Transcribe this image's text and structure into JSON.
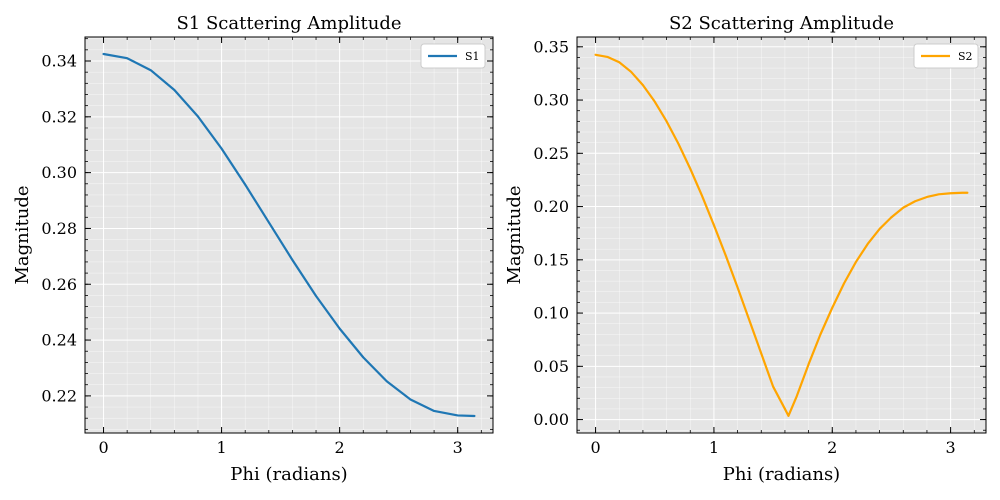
{
  "chart_data": [
    {
      "type": "line",
      "title": "S1 Scattering Amplitude",
      "xlabel": "Phi (radians)",
      "ylabel": "Magnitude",
      "xlim": [
        -0.157,
        3.299
      ],
      "ylim": [
        0.2067,
        0.3486
      ],
      "xticks": [
        0,
        1,
        2,
        3
      ],
      "xtick_labels": [
        "0",
        "1",
        "2",
        "3"
      ],
      "yticks": [
        0.22,
        0.24,
        0.26,
        0.28,
        0.3,
        0.32,
        0.34
      ],
      "ytick_labels": [
        "0.22",
        "0.24",
        "0.26",
        "0.28",
        "0.30",
        "0.32",
        "0.34"
      ],
      "grid": true,
      "legend_position": "top-right",
      "series": [
        {
          "name": "S1",
          "color": "#1f77b4",
          "x": [
            0,
            0.2,
            0.4,
            0.6,
            0.8,
            1.0,
            1.2,
            1.4,
            1.6,
            1.8,
            2.0,
            2.2,
            2.4,
            2.6,
            2.8,
            3.0,
            3.1416
          ],
          "y": [
            0.3425,
            0.341,
            0.3367,
            0.3296,
            0.3201,
            0.3086,
            0.2957,
            0.2822,
            0.2687,
            0.2558,
            0.2441,
            0.2338,
            0.2252,
            0.2187,
            0.2146,
            0.213,
            0.2128
          ]
        }
      ]
    },
    {
      "type": "line",
      "title": "S2 Scattering Amplitude",
      "xlabel": "Phi (radians)",
      "ylabel": "Magnitude",
      "xlim": [
        -0.157,
        3.299
      ],
      "ylim": [
        -0.0126,
        0.3592
      ],
      "xticks": [
        0,
        1,
        2,
        3
      ],
      "xtick_labels": [
        "0",
        "1",
        "2",
        "3"
      ],
      "yticks": [
        0.0,
        0.05,
        0.1,
        0.15,
        0.2,
        0.25,
        0.3,
        0.35
      ],
      "ytick_labels": [
        "0.00",
        "0.05",
        "0.10",
        "0.15",
        "0.20",
        "0.25",
        "0.30",
        "0.35"
      ],
      "grid": true,
      "legend_position": "top-right",
      "series": [
        {
          "name": "S2",
          "color": "#ffa500",
          "x": [
            0,
            0.1,
            0.2,
            0.3,
            0.4,
            0.5,
            0.6,
            0.7,
            0.8,
            0.9,
            1.0,
            1.1,
            1.2,
            1.3,
            1.4,
            1.5,
            1.6,
            1.63,
            1.7,
            1.8,
            1.9,
            2.0,
            2.1,
            2.2,
            2.3,
            2.4,
            2.5,
            2.6,
            2.7,
            2.8,
            2.9,
            3.0,
            3.1,
            3.1416
          ],
          "y": [
            0.3425,
            0.3405,
            0.3355,
            0.3265,
            0.314,
            0.2985,
            0.28,
            0.259,
            0.2355,
            0.21,
            0.1825,
            0.154,
            0.124,
            0.093,
            0.062,
            0.031,
            0.01,
            0.0035,
            0.022,
            0.052,
            0.08,
            0.105,
            0.128,
            0.148,
            0.165,
            0.179,
            0.19,
            0.199,
            0.205,
            0.209,
            0.2115,
            0.2125,
            0.213,
            0.213
          ]
        }
      ]
    }
  ]
}
